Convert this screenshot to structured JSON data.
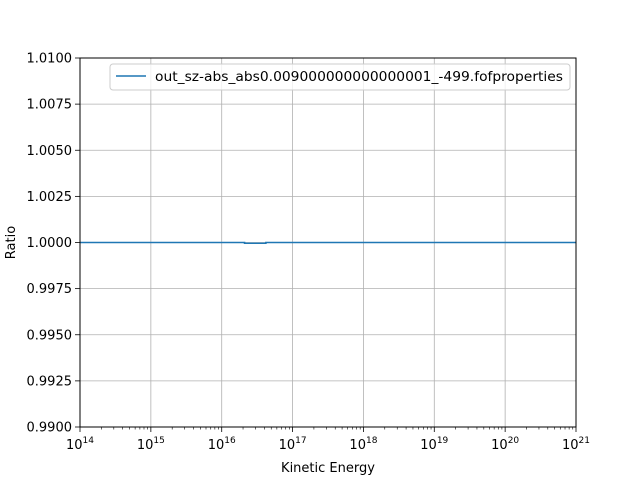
{
  "chart_data": {
    "type": "line",
    "title": "",
    "xlabel": "Kinetic Energy",
    "ylabel": "Ratio",
    "xscale": "log",
    "xlim": [
      100000000000000.0,
      1e+21
    ],
    "ylim": [
      0.99,
      1.01
    ],
    "grid": true,
    "legend_position": "top-right",
    "x_ticks": [
      {
        "value": 100000000000000.0,
        "base": "10",
        "exp": "14"
      },
      {
        "value": 1000000000000000.0,
        "base": "10",
        "exp": "15"
      },
      {
        "value": 1e+16,
        "base": "10",
        "exp": "16"
      },
      {
        "value": 1e+17,
        "base": "10",
        "exp": "17"
      },
      {
        "value": 1e+18,
        "base": "10",
        "exp": "18"
      },
      {
        "value": 1e+19,
        "base": "10",
        "exp": "19"
      },
      {
        "value": 1e+20,
        "base": "10",
        "exp": "20"
      },
      {
        "value": 1e+21,
        "base": "10",
        "exp": "21"
      }
    ],
    "y_ticks": [
      {
        "value": 0.99,
        "label": "0.9900"
      },
      {
        "value": 0.9925,
        "label": "0.9925"
      },
      {
        "value": 0.995,
        "label": "0.9950"
      },
      {
        "value": 0.9975,
        "label": "0.9975"
      },
      {
        "value": 1.0,
        "label": "1.0000"
      },
      {
        "value": 1.0025,
        "label": "1.0025"
      },
      {
        "value": 1.005,
        "label": "1.0050"
      },
      {
        "value": 1.0075,
        "label": "1.0075"
      },
      {
        "value": 1.01,
        "label": "1.0100"
      }
    ],
    "series": [
      {
        "name": "out_sz-abs_abs0.009000000000000001_-499.fofproperties",
        "color": "#1f77b4",
        "x": [
          100000000000000.0,
          2.1e+16,
          2.1e+16,
          4.2e+16,
          4.2e+16,
          1e+21
        ],
        "y": [
          1.0,
          1.0,
          0.99996,
          0.99996,
          1.0,
          1.0
        ]
      }
    ]
  }
}
